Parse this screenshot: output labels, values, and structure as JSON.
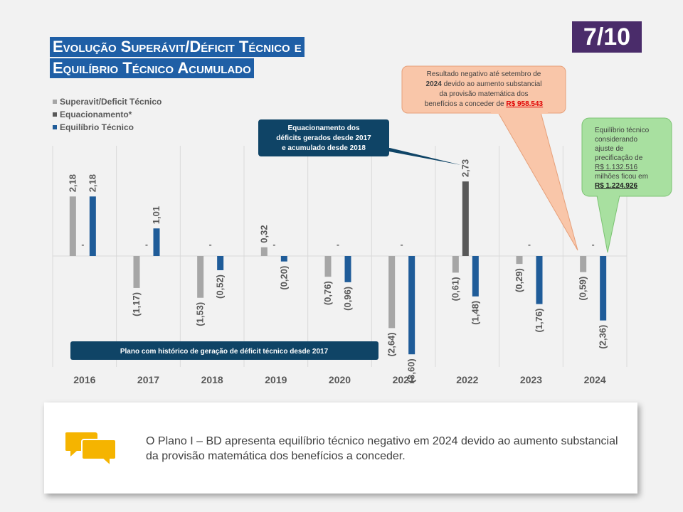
{
  "title": {
    "line1": "Evolução Superávit/Déficit Técnico e",
    "line2": "Equilíbrio Técnico Acumulado"
  },
  "page_indicator": "7/10",
  "chart_data": {
    "type": "bar",
    "categories": [
      "2016",
      "2017",
      "2018",
      "2019",
      "2020",
      "2021",
      "2022",
      "2023",
      "2024"
    ],
    "series": [
      {
        "name": "Superavit/Deficit Técnico",
        "color": "#a6a6a6",
        "values": [
          2.18,
          -1.17,
          -1.53,
          0.32,
          -0.76,
          -2.64,
          -0.61,
          -0.29,
          -0.59
        ],
        "labels": [
          "2,18",
          "(1,17)",
          "(1,53)",
          "0,32",
          "(0,76)",
          "(2,64)",
          "(0,61)",
          "(0,29)",
          "(0,59)"
        ]
      },
      {
        "name": "Equacionamento*",
        "color": "#595959",
        "values": [
          0,
          0,
          0,
          0,
          0,
          0,
          2.73,
          0,
          0
        ],
        "labels": [
          "-",
          "-",
          "-",
          "-",
          "-",
          "-",
          "2,73",
          "-",
          "-"
        ]
      },
      {
        "name": "Equilíbrio Técnico",
        "color": "#1f5c99",
        "values": [
          2.18,
          1.01,
          -0.52,
          -0.2,
          -0.96,
          -3.6,
          -1.48,
          -1.76,
          -2.36
        ],
        "labels": [
          "2,18",
          "1,01",
          "(0,52)",
          "(0,20)",
          "(0,96)",
          "(3,60)",
          "(1,48)",
          "(1,76)",
          "(2,36)"
        ]
      }
    ],
    "ylim": [
      -4.0,
      4.0
    ],
    "grid": "vertical",
    "legend": "top-left"
  },
  "annotations": {
    "equacionamento": {
      "line1": "Equacionamento dos",
      "line2": "déficits gerados desde 2017",
      "line3": "e acumulado desde 2018"
    },
    "plano": "Plano com histórico de geração de déficit técnico desde 2017",
    "resultado": {
      "line1": "Resultado negativo até setembro de",
      "line2_bold": "2024",
      "line2_rest": " devido ao aumento substancial",
      "line3": "da provisão matemática dos",
      "line4": "benefícios a conceder de ",
      "line4_value": "R$ 958.543",
      "value_color": "#e00000"
    },
    "equilibrio": {
      "line1": "Equilíbrio técnico",
      "line2": "considerando",
      "line3": "ajuste de",
      "line4": "precificação de",
      "line5": "R$ 1.132.516",
      "line6": "milhões ficou em",
      "line7": "R$ 1.224.926"
    }
  },
  "summary": "O Plano I – BD apresenta equilíbrio técnico negativo em 2024 devido ao aumento substancial da provisão matemática dos benefícios a conceder.",
  "icons": {
    "summary_icon": "chat-bubbles-icon"
  },
  "colors": {
    "title_bg": "#1f5fa6",
    "badge_bg": "#4a2c6a",
    "callout_blue": "#0f4466",
    "callout_orange": "#f9c6a9",
    "callout_green": "#a8e0a0",
    "icon_yellow": "#f5b400"
  }
}
